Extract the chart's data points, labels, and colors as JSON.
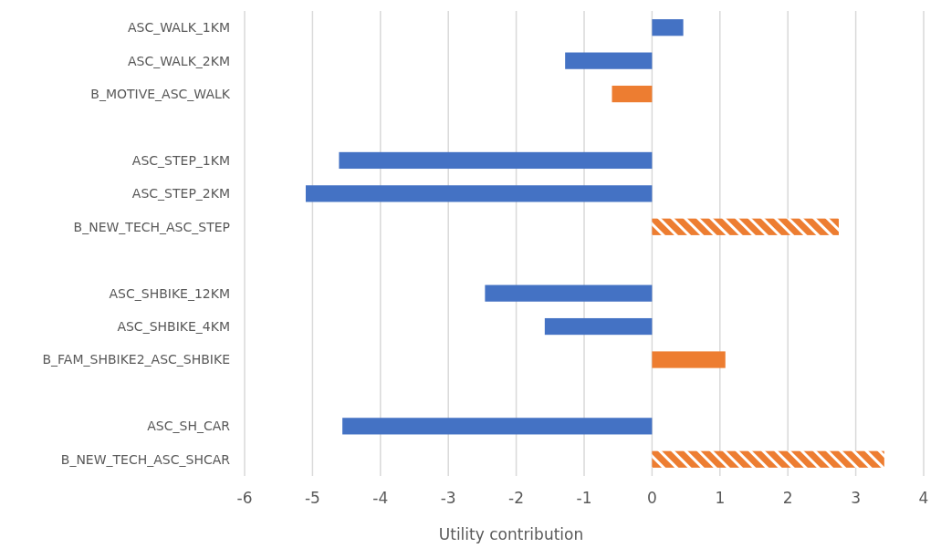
{
  "chart_data": {
    "type": "bar",
    "orientation": "horizontal",
    "xlabel": "Utility contribution",
    "categories": [
      "ASC_WALK_1KM",
      "ASC_WALK_2KM",
      "B_MOTIVE_ASC_WALK",
      null,
      "ASC_STEP_1KM",
      "ASC_STEP_2KM",
      "B_NEW_TECH_ASC_STEP",
      null,
      "ASC_SHBIKE_12KM",
      "ASC_SHBIKE_4KM",
      "B_FAM_SHBIKE2_ASC_SHBIKE",
      null,
      "ASC_SH_CAR",
      "B_NEW_TECH_ASC_SHCAR"
    ],
    "series": [
      {
        "color": "#4472c4",
        "values": [
          0.46,
          -1.28,
          null,
          null,
          -4.61,
          -5.1,
          null,
          null,
          -2.46,
          -1.58,
          null,
          null,
          -4.56,
          null
        ]
      },
      {
        "color": "#ed7d31",
        "values": [
          null,
          null,
          -0.59,
          null,
          null,
          null,
          null,
          null,
          null,
          null,
          1.08,
          null,
          null,
          null
        ]
      },
      {
        "color": "#ed7d31",
        "values": [
          null,
          null,
          null,
          null,
          null,
          null,
          2.75,
          null,
          null,
          null,
          null,
          null,
          null,
          3.42
        ]
      }
    ],
    "xlim": [
      -6,
      4
    ],
    "xticks": [
      -6,
      -5,
      -4,
      -3,
      -2,
      -1,
      0,
      1,
      2,
      3,
      4
    ],
    "grid": "x"
  }
}
